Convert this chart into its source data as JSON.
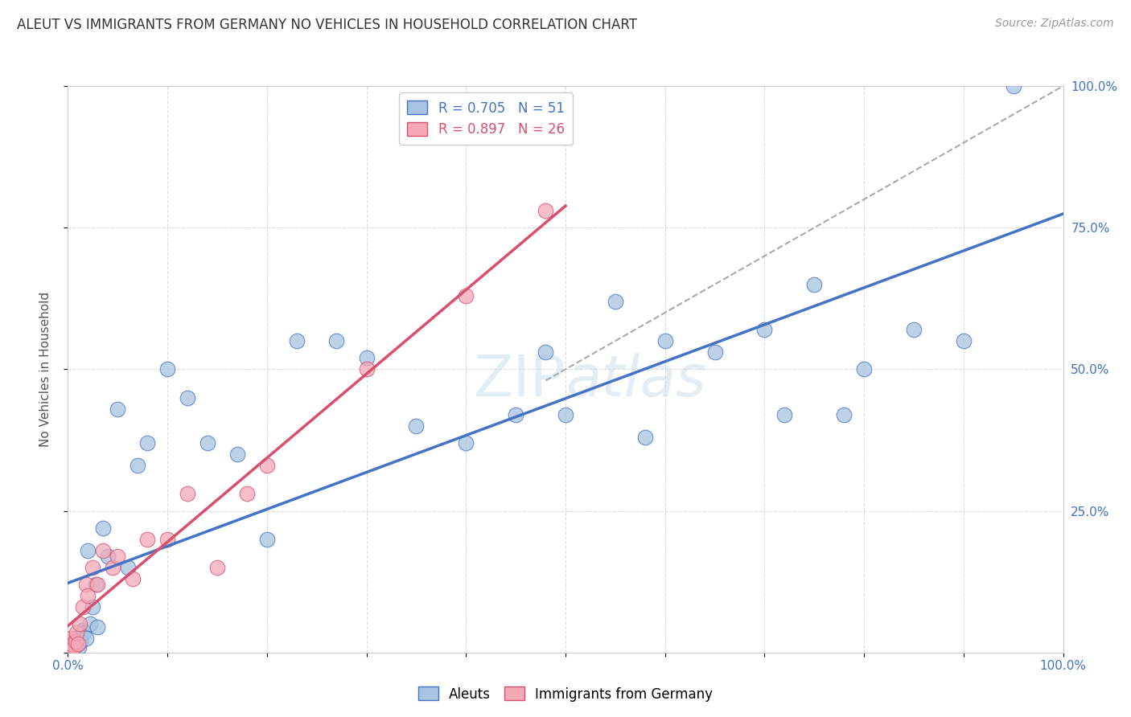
{
  "title": "ALEUT VS IMMIGRANTS FROM GERMANY NO VEHICLES IN HOUSEHOLD CORRELATION CHART",
  "source": "Source: ZipAtlas.com",
  "ylabel": "No Vehicles in Household",
  "legend_aleuts": "Aleuts",
  "legend_immigrants": "Immigrants from Germany",
  "aleuts_R": "0.705",
  "aleuts_N": "51",
  "immigrants_R": "0.897",
  "immigrants_N": "26",
  "aleuts_color": "#a8c4e0",
  "immigrants_color": "#f4a8b8",
  "aleuts_line_color": "#4472c4",
  "immigrants_line_color": "#d94f6e",
  "trendline_color": "#b0b0b0",
  "background_color": "#ffffff",
  "aleuts_x": [
    0.2,
    0.3,
    0.4,
    0.5,
    0.6,
    0.7,
    0.8,
    0.9,
    1.0,
    1.1,
    1.2,
    1.3,
    1.5,
    1.6,
    1.8,
    2.0,
    2.2,
    2.5,
    2.8,
    3.0,
    3.5,
    4.0,
    5.0,
    6.0,
    7.0,
    8.0,
    10.0,
    12.0,
    14.0,
    17.0,
    20.0,
    23.0,
    27.0,
    30.0,
    35.0,
    40.0,
    45.0,
    48.0,
    50.0,
    55.0,
    58.0,
    60.0,
    65.0,
    70.0,
    72.0,
    75.0,
    78.0,
    80.0,
    85.0,
    90.0,
    95.0
  ],
  "aleuts_y": [
    1.0,
    1.5,
    0.5,
    2.0,
    1.0,
    0.8,
    1.2,
    2.5,
    1.5,
    1.0,
    3.0,
    2.0,
    4.0,
    3.5,
    2.5,
    18.0,
    5.0,
    8.0,
    12.0,
    4.5,
    22.0,
    17.0,
    43.0,
    15.0,
    33.0,
    37.0,
    50.0,
    45.0,
    37.0,
    35.0,
    20.0,
    55.0,
    55.0,
    52.0,
    40.0,
    37.0,
    42.0,
    53.0,
    42.0,
    62.0,
    38.0,
    55.0,
    53.0,
    57.0,
    42.0,
    65.0,
    42.0,
    50.0,
    57.0,
    55.0,
    100.0
  ],
  "immigrants_x": [
    0.2,
    0.3,
    0.5,
    0.6,
    0.8,
    0.9,
    1.0,
    1.2,
    1.5,
    1.8,
    2.0,
    2.5,
    3.0,
    3.5,
    4.5,
    5.0,
    6.5,
    8.0,
    10.0,
    12.0,
    15.0,
    18.0,
    20.0,
    30.0,
    40.0,
    48.0
  ],
  "immigrants_y": [
    1.0,
    2.5,
    1.5,
    1.0,
    2.0,
    3.5,
    1.5,
    5.0,
    8.0,
    12.0,
    10.0,
    15.0,
    12.0,
    18.0,
    15.0,
    17.0,
    13.0,
    20.0,
    20.0,
    28.0,
    15.0,
    28.0,
    33.0,
    50.0,
    63.0,
    78.0
  ]
}
